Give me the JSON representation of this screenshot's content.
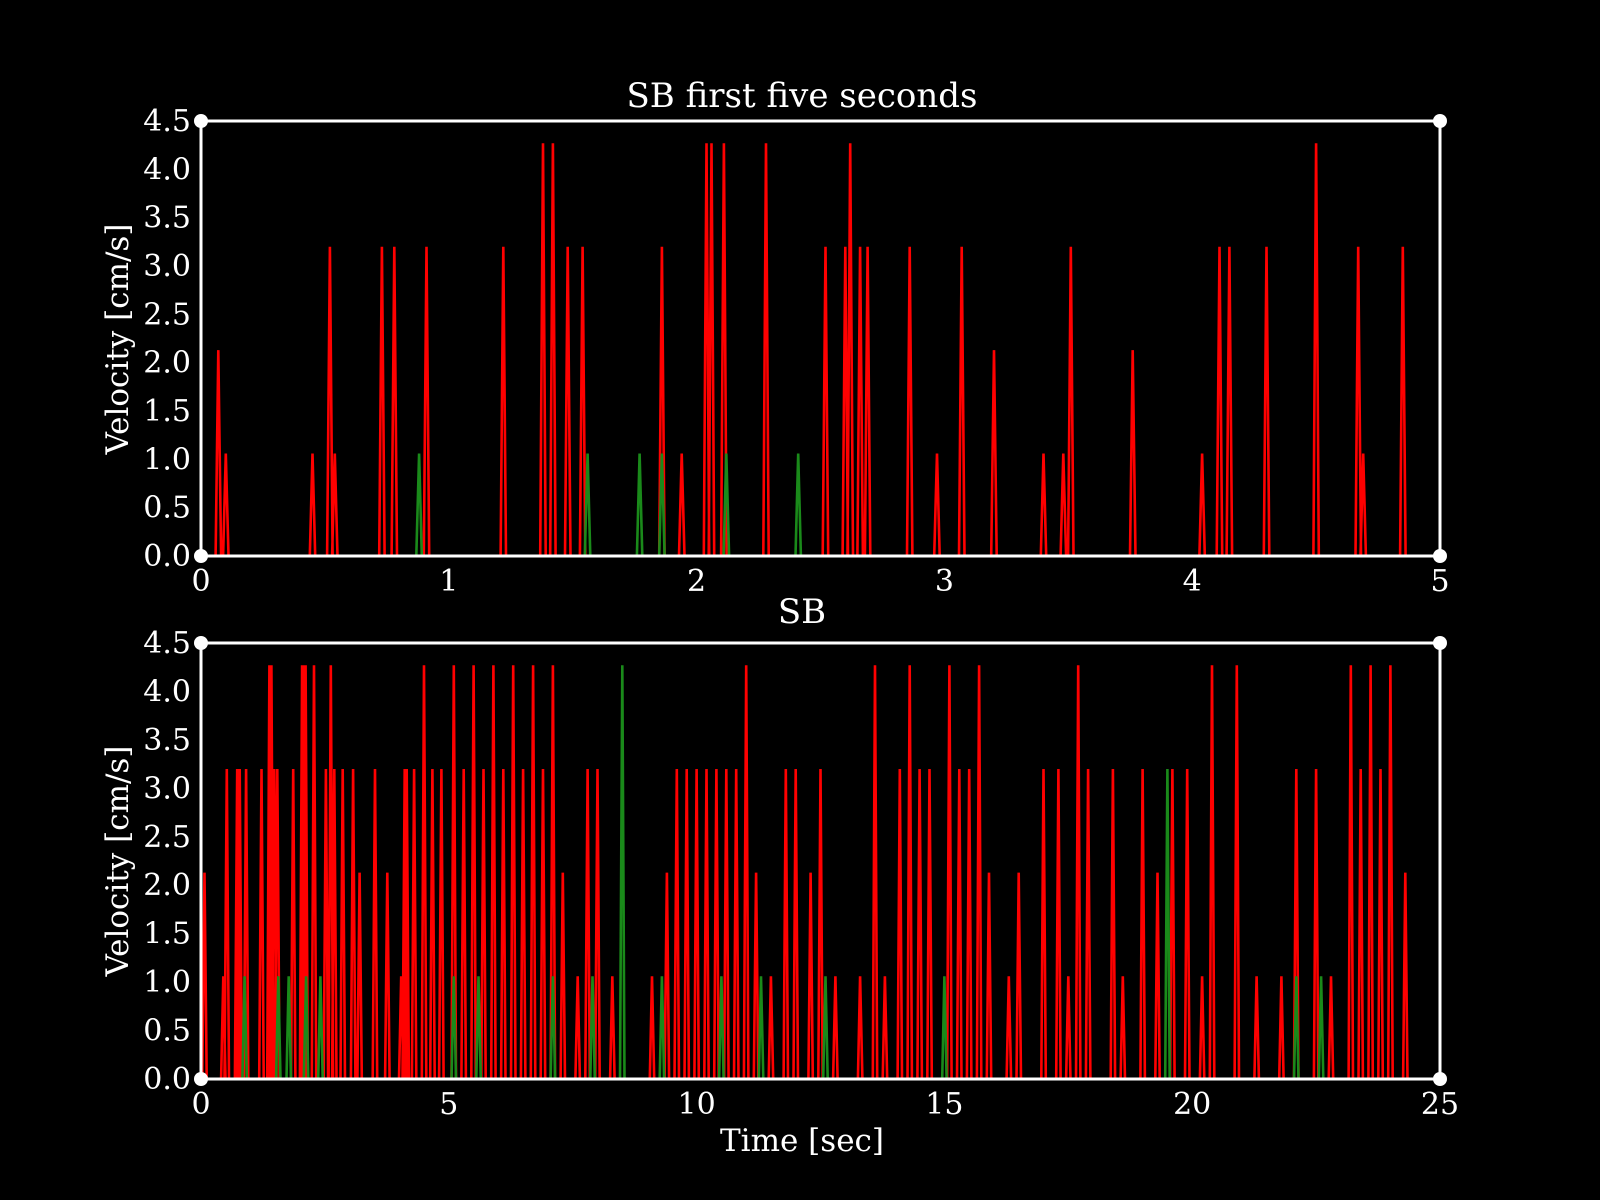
{
  "colors": {
    "background": "#000000",
    "foreground": "#ffffff",
    "series_red": "#ff0000",
    "series_green": "#1a8a1a"
  },
  "chart_data": [
    {
      "type": "line",
      "title": "SB first five seconds",
      "xlabel": "",
      "ylabel": "Velocity [cm/s]",
      "xlim": [
        0,
        5
      ],
      "ylim": [
        0,
        4.5
      ],
      "xticks": [
        0,
        1,
        2,
        3,
        4,
        5
      ],
      "xtick_labels": [
        "0",
        "1",
        "2",
        "3",
        "4",
        "5"
      ],
      "yticks": [
        0,
        0.5,
        1,
        1.5,
        2,
        2.5,
        3,
        3.5,
        4,
        4.5
      ],
      "ytick_labels": [
        "0.0",
        "0.5",
        "1.0",
        "1.5",
        "2.0",
        "2.5",
        "3.0",
        "3.5",
        "4.0",
        "4.5"
      ],
      "grid": false,
      "legend": "none",
      "series": [
        {
          "color": "#ff0000",
          "peaks": [
            {
              "t": 0.07,
              "v": 2.13
            },
            {
              "t": 0.1,
              "v": 1.06
            },
            {
              "t": 0.45,
              "v": 1.06
            },
            {
              "t": 0.52,
              "v": 3.2
            },
            {
              "t": 0.54,
              "v": 1.06
            },
            {
              "t": 0.73,
              "v": 3.2
            },
            {
              "t": 0.78,
              "v": 3.2
            },
            {
              "t": 0.91,
              "v": 3.2
            },
            {
              "t": 1.22,
              "v": 3.2
            },
            {
              "t": 1.38,
              "v": 4.27
            },
            {
              "t": 1.42,
              "v": 4.27
            },
            {
              "t": 1.48,
              "v": 3.2
            },
            {
              "t": 1.54,
              "v": 3.2
            },
            {
              "t": 1.86,
              "v": 3.2
            },
            {
              "t": 1.94,
              "v": 1.06
            },
            {
              "t": 2.04,
              "v": 4.27
            },
            {
              "t": 2.06,
              "v": 4.27
            },
            {
              "t": 2.11,
              "v": 4.27
            },
            {
              "t": 2.28,
              "v": 4.27
            },
            {
              "t": 2.52,
              "v": 3.2
            },
            {
              "t": 2.6,
              "v": 3.2
            },
            {
              "t": 2.62,
              "v": 4.27
            },
            {
              "t": 2.66,
              "v": 3.2
            },
            {
              "t": 2.69,
              "v": 3.2
            },
            {
              "t": 2.86,
              "v": 3.2
            },
            {
              "t": 2.97,
              "v": 1.06
            },
            {
              "t": 3.07,
              "v": 3.2
            },
            {
              "t": 3.2,
              "v": 2.13
            },
            {
              "t": 3.4,
              "v": 1.06
            },
            {
              "t": 3.48,
              "v": 1.06
            },
            {
              "t": 3.51,
              "v": 3.2
            },
            {
              "t": 3.76,
              "v": 2.13
            },
            {
              "t": 4.04,
              "v": 1.06
            },
            {
              "t": 4.11,
              "v": 3.2
            },
            {
              "t": 4.15,
              "v": 3.2
            },
            {
              "t": 4.3,
              "v": 3.2
            },
            {
              "t": 4.5,
              "v": 4.27
            },
            {
              "t": 4.67,
              "v": 3.2
            },
            {
              "t": 4.69,
              "v": 1.06
            },
            {
              "t": 4.85,
              "v": 3.2
            }
          ]
        },
        {
          "color": "#1a8a1a",
          "peaks": [
            {
              "t": 0.88,
              "v": 1.06
            },
            {
              "t": 1.56,
              "v": 1.06
            },
            {
              "t": 1.77,
              "v": 1.06
            },
            {
              "t": 1.86,
              "v": 1.06
            },
            {
              "t": 2.12,
              "v": 1.06
            },
            {
              "t": 2.41,
              "v": 1.06
            }
          ]
        }
      ]
    },
    {
      "type": "line",
      "title": "SB",
      "xlabel": "Time [sec]",
      "ylabel": "Velocity [cm/s]",
      "xlim": [
        0,
        25
      ],
      "ylim": [
        0,
        4.5
      ],
      "xticks": [
        0,
        5,
        10,
        15,
        20,
        25
      ],
      "xtick_labels": [
        "0",
        "5",
        "10",
        "15",
        "20",
        "25"
      ],
      "yticks": [
        0,
        0.5,
        1,
        1.5,
        2,
        2.5,
        3,
        3.5,
        4,
        4.5
      ],
      "ytick_labels": [
        "0.0",
        "0.5",
        "1.0",
        "1.5",
        "2.0",
        "2.5",
        "3.0",
        "3.5",
        "4.0",
        "4.5"
      ],
      "grid": false,
      "legend": "none",
      "series": [
        {
          "color": "#ff0000",
          "peaks": [
            {
              "t": 0.07,
              "v": 2.13
            },
            {
              "t": 0.45,
              "v": 1.06
            },
            {
              "t": 0.52,
              "v": 3.2
            },
            {
              "t": 0.73,
              "v": 3.2
            },
            {
              "t": 0.78,
              "v": 3.2
            },
            {
              "t": 0.91,
              "v": 3.2
            },
            {
              "t": 1.22,
              "v": 3.2
            },
            {
              "t": 1.38,
              "v": 4.27
            },
            {
              "t": 1.42,
              "v": 4.27
            },
            {
              "t": 1.48,
              "v": 3.2
            },
            {
              "t": 1.54,
              "v": 3.2
            },
            {
              "t": 1.86,
              "v": 3.2
            },
            {
              "t": 2.04,
              "v": 4.27
            },
            {
              "t": 2.06,
              "v": 4.27
            },
            {
              "t": 2.11,
              "v": 4.27
            },
            {
              "t": 2.28,
              "v": 4.27
            },
            {
              "t": 2.52,
              "v": 3.2
            },
            {
              "t": 2.62,
              "v": 4.27
            },
            {
              "t": 2.69,
              "v": 3.2
            },
            {
              "t": 2.86,
              "v": 3.2
            },
            {
              "t": 3.07,
              "v": 3.2
            },
            {
              "t": 3.2,
              "v": 2.13
            },
            {
              "t": 3.51,
              "v": 3.2
            },
            {
              "t": 3.76,
              "v": 2.13
            },
            {
              "t": 4.04,
              "v": 1.06
            },
            {
              "t": 4.11,
              "v": 3.2
            },
            {
              "t": 4.15,
              "v": 3.2
            },
            {
              "t": 4.3,
              "v": 3.2
            },
            {
              "t": 4.5,
              "v": 4.27
            },
            {
              "t": 4.67,
              "v": 3.2
            },
            {
              "t": 4.85,
              "v": 3.2
            },
            {
              "t": 5.1,
              "v": 4.27
            },
            {
              "t": 5.3,
              "v": 3.2
            },
            {
              "t": 5.5,
              "v": 4.27
            },
            {
              "t": 5.7,
              "v": 3.2
            },
            {
              "t": 5.9,
              "v": 4.27
            },
            {
              "t": 6.1,
              "v": 3.2
            },
            {
              "t": 6.3,
              "v": 4.27
            },
            {
              "t": 6.5,
              "v": 3.2
            },
            {
              "t": 6.7,
              "v": 4.27
            },
            {
              "t": 6.9,
              "v": 3.2
            },
            {
              "t": 7.1,
              "v": 4.27
            },
            {
              "t": 7.3,
              "v": 2.13
            },
            {
              "t": 7.6,
              "v": 1.06
            },
            {
              "t": 7.8,
              "v": 3.2
            },
            {
              "t": 8.0,
              "v": 3.2
            },
            {
              "t": 8.3,
              "v": 1.06
            },
            {
              "t": 9.1,
              "v": 1.06
            },
            {
              "t": 9.4,
              "v": 2.13
            },
            {
              "t": 9.6,
              "v": 3.2
            },
            {
              "t": 9.8,
              "v": 3.2
            },
            {
              "t": 10.0,
              "v": 3.2
            },
            {
              "t": 10.2,
              "v": 3.2
            },
            {
              "t": 10.4,
              "v": 3.2
            },
            {
              "t": 10.6,
              "v": 3.2
            },
            {
              "t": 10.8,
              "v": 3.2
            },
            {
              "t": 11.0,
              "v": 4.27
            },
            {
              "t": 11.2,
              "v": 2.13
            },
            {
              "t": 11.5,
              "v": 1.06
            },
            {
              "t": 11.8,
              "v": 3.2
            },
            {
              "t": 12.0,
              "v": 3.2
            },
            {
              "t": 12.3,
              "v": 2.13
            },
            {
              "t": 12.5,
              "v": 3.2
            },
            {
              "t": 12.8,
              "v": 1.06
            },
            {
              "t": 13.3,
              "v": 1.06
            },
            {
              "t": 13.6,
              "v": 4.27
            },
            {
              "t": 13.8,
              "v": 1.06
            },
            {
              "t": 14.1,
              "v": 3.2
            },
            {
              "t": 14.3,
              "v": 4.27
            },
            {
              "t": 14.5,
              "v": 3.2
            },
            {
              "t": 14.7,
              "v": 3.2
            },
            {
              "t": 15.1,
              "v": 4.27
            },
            {
              "t": 15.3,
              "v": 3.2
            },
            {
              "t": 15.5,
              "v": 3.2
            },
            {
              "t": 15.7,
              "v": 4.27
            },
            {
              "t": 15.9,
              "v": 2.13
            },
            {
              "t": 16.3,
              "v": 1.06
            },
            {
              "t": 16.5,
              "v": 2.13
            },
            {
              "t": 17.0,
              "v": 3.2
            },
            {
              "t": 17.3,
              "v": 3.2
            },
            {
              "t": 17.5,
              "v": 1.06
            },
            {
              "t": 17.7,
              "v": 4.27
            },
            {
              "t": 17.9,
              "v": 3.2
            },
            {
              "t": 18.4,
              "v": 3.2
            },
            {
              "t": 18.6,
              "v": 1.06
            },
            {
              "t": 19.0,
              "v": 3.2
            },
            {
              "t": 19.3,
              "v": 2.13
            },
            {
              "t": 19.6,
              "v": 3.2
            },
            {
              "t": 19.9,
              "v": 3.2
            },
            {
              "t": 20.2,
              "v": 1.06
            },
            {
              "t": 20.4,
              "v": 4.27
            },
            {
              "t": 20.9,
              "v": 4.27
            },
            {
              "t": 21.3,
              "v": 1.06
            },
            {
              "t": 21.8,
              "v": 1.06
            },
            {
              "t": 22.1,
              "v": 3.2
            },
            {
              "t": 22.5,
              "v": 3.2
            },
            {
              "t": 22.8,
              "v": 1.06
            },
            {
              "t": 23.2,
              "v": 4.27
            },
            {
              "t": 23.4,
              "v": 3.2
            },
            {
              "t": 23.6,
              "v": 4.27
            },
            {
              "t": 23.8,
              "v": 3.2
            },
            {
              "t": 24.0,
              "v": 4.27
            },
            {
              "t": 24.3,
              "v": 2.13
            }
          ]
        },
        {
          "color": "#1a8a1a",
          "peaks": [
            {
              "t": 0.88,
              "v": 1.06
            },
            {
              "t": 1.56,
              "v": 1.06
            },
            {
              "t": 1.77,
              "v": 1.06
            },
            {
              "t": 2.12,
              "v": 1.06
            },
            {
              "t": 2.41,
              "v": 1.06
            },
            {
              "t": 5.1,
              "v": 1.06
            },
            {
              "t": 5.6,
              "v": 1.06
            },
            {
              "t": 7.1,
              "v": 1.06
            },
            {
              "t": 7.9,
              "v": 1.06
            },
            {
              "t": 8.5,
              "v": 4.27
            },
            {
              "t": 9.3,
              "v": 1.06
            },
            {
              "t": 10.5,
              "v": 1.06
            },
            {
              "t": 11.3,
              "v": 1.06
            },
            {
              "t": 12.6,
              "v": 1.06
            },
            {
              "t": 15.0,
              "v": 1.06
            },
            {
              "t": 19.5,
              "v": 3.2
            },
            {
              "t": 22.1,
              "v": 1.06
            },
            {
              "t": 22.6,
              "v": 1.06
            }
          ]
        }
      ]
    }
  ]
}
